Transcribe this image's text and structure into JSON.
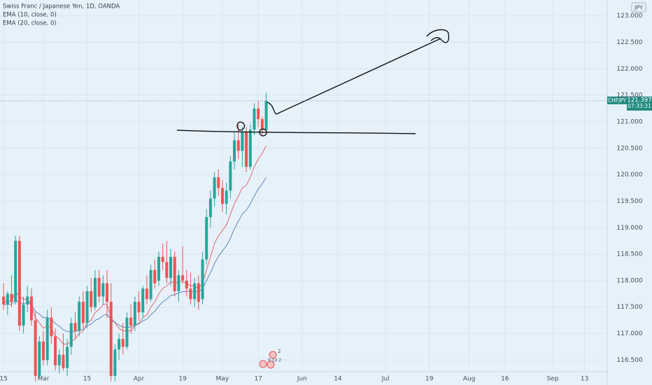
{
  "chart_data": {
    "type": "candlestick",
    "title": "Swiss Franc / Japanese Yen, 1D, OANDA",
    "indicators": [
      "EMA (10, close, 0)",
      "EMA (20, close, 0)"
    ],
    "currency": "JPY",
    "symbol": "CHFJPY",
    "last_price": 121.397,
    "countdown": "07:33:31",
    "up_color": "#26a69a",
    "down_color": "#ef5350",
    "ylim": [
      116.28,
      123.3
    ],
    "yticks": [
      {
        "value": 116.5,
        "label": "116.500"
      },
      {
        "value": 117,
        "label": "117.000"
      },
      {
        "value": 117.5,
        "label": "117.500"
      },
      {
        "value": 118,
        "label": "118.000"
      },
      {
        "value": 118.5,
        "label": "118.500"
      },
      {
        "value": 119,
        "label": "119.000"
      },
      {
        "value": 119.5,
        "label": "119.500"
      },
      {
        "value": 120,
        "label": "120.000"
      },
      {
        "value": 120.5,
        "label": "120.500"
      },
      {
        "value": 121,
        "label": "121.000"
      },
      {
        "value": 121.5,
        "label": "121.500"
      },
      {
        "value": 122,
        "label": "122.000"
      },
      {
        "value": 122.5,
        "label": "122.500"
      },
      {
        "value": 123,
        "label": "123.000"
      }
    ],
    "xlim": [
      -0.9,
      151.7
    ],
    "xticks": [
      {
        "value": 0,
        "label": "15"
      },
      {
        "value": 10,
        "label": "Mar"
      },
      {
        "value": 21,
        "label": "15"
      },
      {
        "value": 34,
        "label": "Apr"
      },
      {
        "value": 45,
        "label": "19"
      },
      {
        "value": 55,
        "label": "May"
      },
      {
        "value": 64,
        "label": "17"
      },
      {
        "value": 75,
        "label": "Jun"
      },
      {
        "value": 84,
        "label": "14"
      },
      {
        "value": 96,
        "label": "Jul"
      },
      {
        "value": 107,
        "label": "19"
      },
      {
        "value": 117,
        "label": "Aug"
      },
      {
        "value": 126,
        "label": "16"
      },
      {
        "value": 138,
        "label": "Sep"
      },
      {
        "value": 146,
        "label": "13"
      }
    ],
    "candles": [
      [
        117.7,
        117.95,
        117.45,
        117.55
      ],
      [
        117.55,
        117.8,
        117.35,
        117.75
      ],
      [
        117.75,
        118.1,
        117.5,
        117.6
      ],
      [
        117.6,
        118.85,
        117.55,
        118.75
      ],
      [
        118.75,
        118.85,
        117.05,
        117.15
      ],
      [
        117.15,
        117.7,
        117.0,
        117.55
      ],
      [
        117.55,
        117.9,
        117.4,
        117.7
      ],
      [
        117.7,
        117.85,
        117.15,
        117.25
      ],
      [
        117.25,
        117.4,
        116.1,
        116.2
      ],
      [
        116.2,
        116.95,
        116.15,
        116.85
      ],
      [
        116.85,
        117.05,
        116.4,
        116.5
      ],
      [
        116.5,
        117.45,
        116.4,
        117.3
      ],
      [
        117.3,
        117.5,
        116.8,
        116.95
      ],
      [
        116.95,
        117.1,
        116.3,
        116.4
      ],
      [
        116.4,
        116.7,
        116.25,
        116.6
      ],
      [
        116.6,
        117.0,
        116.3,
        116.35
      ],
      [
        116.35,
        116.9,
        116.2,
        116.75
      ],
      [
        116.75,
        117.3,
        116.6,
        117.2
      ],
      [
        117.2,
        117.4,
        116.9,
        117.05
      ],
      [
        117.05,
        117.7,
        116.95,
        117.6
      ],
      [
        117.6,
        117.8,
        117.1,
        117.2
      ],
      [
        117.2,
        117.9,
        117.1,
        117.8
      ],
      [
        117.8,
        118.05,
        117.4,
        117.5
      ],
      [
        117.5,
        118.2,
        117.45,
        118.05
      ],
      [
        118.05,
        118.2,
        117.6,
        117.7
      ],
      [
        117.7,
        118.1,
        117.55,
        117.95
      ],
      [
        117.95,
        118.2,
        117.3,
        117.6
      ],
      [
        117.6,
        117.95,
        116.1,
        116.2
      ],
      [
        116.2,
        116.8,
        116.1,
        116.7
      ],
      [
        116.7,
        117.0,
        116.5,
        116.9
      ],
      [
        116.9,
        117.2,
        116.6,
        116.75
      ],
      [
        116.75,
        117.4,
        116.7,
        117.3
      ],
      [
        117.3,
        117.55,
        117.0,
        117.15
      ],
      [
        117.15,
        117.7,
        117.05,
        117.6
      ],
      [
        117.6,
        117.8,
        117.25,
        117.4
      ],
      [
        117.4,
        117.9,
        117.3,
        117.85
      ],
      [
        117.85,
        118.1,
        117.55,
        117.65
      ],
      [
        117.65,
        118.3,
        117.6,
        118.2
      ],
      [
        118.2,
        118.4,
        117.85,
        117.95
      ],
      [
        118.0,
        118.55,
        117.9,
        118.45
      ],
      [
        118.45,
        118.7,
        118.2,
        118.35
      ],
      [
        118.35,
        118.75,
        117.95,
        118.05
      ],
      [
        118.05,
        118.6,
        117.9,
        118.45
      ],
      [
        118.45,
        118.55,
        117.7,
        117.8
      ],
      [
        117.8,
        118.2,
        117.6,
        118.1
      ],
      [
        118.1,
        118.65,
        117.95,
        118.0
      ],
      [
        118.0,
        118.2,
        117.7,
        117.85
      ],
      [
        117.85,
        118.15,
        117.55,
        117.65
      ],
      [
        117.65,
        118.05,
        117.5,
        117.95
      ],
      [
        117.95,
        118.1,
        117.45,
        117.6
      ],
      [
        117.65,
        118.55,
        117.55,
        118.4
      ],
      [
        118.4,
        119.35,
        118.3,
        119.2
      ],
      [
        119.2,
        119.7,
        119.0,
        119.55
      ],
      [
        119.55,
        120.05,
        119.4,
        119.95
      ],
      [
        119.95,
        120.1,
        119.6,
        119.75
      ],
      [
        119.75,
        119.9,
        119.3,
        119.45
      ],
      [
        119.45,
        119.85,
        119.25,
        119.7
      ],
      [
        119.7,
        120.35,
        119.55,
        120.25
      ],
      [
        120.25,
        120.8,
        120.1,
        120.65
      ],
      [
        120.65,
        120.95,
        120.3,
        120.45
      ],
      [
        120.45,
        120.9,
        120.15,
        120.8
      ],
      [
        120.8,
        120.9,
        120.05,
        120.15
      ],
      [
        120.15,
        120.95,
        120.1,
        120.85
      ],
      [
        120.85,
        121.35,
        120.75,
        121.25
      ],
      [
        121.25,
        121.4,
        120.9,
        121.05
      ],
      [
        121.05,
        121.1,
        120.75,
        120.85
      ],
      [
        120.85,
        121.55,
        120.8,
        121.397
      ]
    ],
    "series": [
      {
        "name": "EMA (10, close, 0)",
        "color": "#e0494a",
        "values": [
          117.6,
          117.6,
          117.6,
          117.8,
          117.7,
          117.65,
          117.65,
          117.55,
          117.3,
          117.2,
          117.1,
          117.15,
          117.1,
          116.95,
          116.9,
          116.8,
          116.8,
          116.85,
          116.9,
          117.0,
          117.05,
          117.2,
          117.25,
          117.4,
          117.45,
          117.55,
          117.55,
          117.3,
          117.2,
          117.1,
          117.05,
          117.05,
          117.05,
          117.15,
          117.2,
          117.3,
          117.35,
          117.5,
          117.6,
          117.75,
          117.85,
          117.9,
          117.98,
          117.95,
          117.98,
          117.98,
          117.95,
          117.9,
          117.9,
          117.85,
          117.95,
          118.2,
          118.45,
          118.7,
          118.85,
          118.95,
          119.05,
          119.25,
          119.45,
          119.6,
          119.75,
          119.8,
          119.95,
          120.15,
          120.3,
          120.4,
          120.55
        ]
      },
      {
        "name": "EMA (20, close, 0)",
        "color": "#3f6fa8",
        "values": [
          117.55,
          117.55,
          117.55,
          117.62,
          117.58,
          117.57,
          117.58,
          117.55,
          117.42,
          117.37,
          117.3,
          117.3,
          117.27,
          117.19,
          117.14,
          117.07,
          117.04,
          117.03,
          117.04,
          117.07,
          117.08,
          117.15,
          117.18,
          117.25,
          117.28,
          117.34,
          117.37,
          117.26,
          117.21,
          117.16,
          117.12,
          117.12,
          117.12,
          117.16,
          117.18,
          117.24,
          117.27,
          117.36,
          117.42,
          117.52,
          117.6,
          117.65,
          117.72,
          117.73,
          117.77,
          117.79,
          117.8,
          117.79,
          117.8,
          117.79,
          117.85,
          118.0,
          118.15,
          118.32,
          118.46,
          118.56,
          118.66,
          118.8,
          118.98,
          119.12,
          119.26,
          119.33,
          119.45,
          119.6,
          119.73,
          119.83,
          119.95
        ]
      }
    ],
    "event_labels": [
      "2",
      "9 10 2"
    ]
  }
}
